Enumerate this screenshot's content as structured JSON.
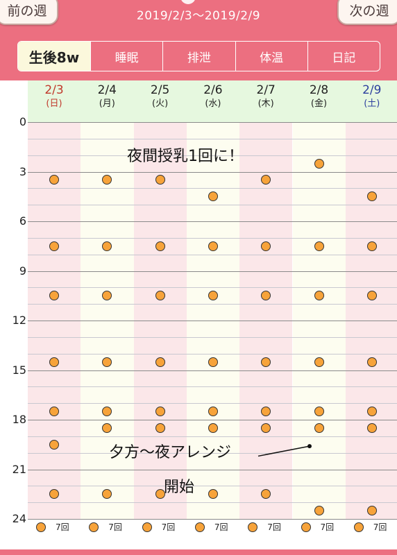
{
  "header": {
    "prev_week": "前の週",
    "next_week": "次の週",
    "date_range": "2019/2/3〜2019/2/9"
  },
  "tabs": [
    {
      "label": "生後8w",
      "sub": "",
      "active": true
    },
    {
      "label": "睡眠",
      "active": false
    },
    {
      "label": "排泄",
      "active": false
    },
    {
      "label": "体温",
      "active": false
    },
    {
      "label": "日記",
      "active": false
    }
  ],
  "days": [
    {
      "date": "2/3",
      "weekday": "(日)",
      "color": "#c0392b",
      "bg": "#fbe7e9"
    },
    {
      "date": "2/4",
      "weekday": "(月)",
      "color": "#222222",
      "bg": "#fdfdf0"
    },
    {
      "date": "2/5",
      "weekday": "(火)",
      "color": "#222222",
      "bg": "#fbe7e9"
    },
    {
      "date": "2/6",
      "weekday": "(水)",
      "color": "#222222",
      "bg": "#fdfdf0"
    },
    {
      "date": "2/7",
      "weekday": "(木)",
      "color": "#222222",
      "bg": "#fbe7e9"
    },
    {
      "date": "2/8",
      "weekday": "(金)",
      "color": "#222222",
      "bg": "#fdfdf0"
    },
    {
      "date": "2/9",
      "weekday": "(土)",
      "color": "#2c3f9e",
      "bg": "#fbe7e9"
    }
  ],
  "y_labels": [
    "0",
    "3",
    "6",
    "9",
    "12",
    "15",
    "18",
    "21",
    "24"
  ],
  "feedings": [
    [
      3.5,
      7.5,
      10.5,
      14.5,
      17.5,
      19.5,
      22.5
    ],
    [
      3.5,
      7.5,
      10.5,
      14.5,
      17.5,
      18.5,
      22.5
    ],
    [
      3.5,
      7.5,
      10.5,
      14.5,
      17.5,
      18.5,
      22.5
    ],
    [
      4.5,
      7.5,
      10.5,
      14.5,
      17.5,
      18.5,
      22.5
    ],
    [
      3.5,
      7.5,
      10.5,
      14.5,
      17.5,
      18.5,
      22.5
    ],
    [
      2.5,
      7.5,
      10.5,
      14.5,
      17.5,
      18.5,
      23.5
    ],
    [
      4.5,
      7.5,
      10.5,
      14.5,
      17.5,
      18.5,
      23.5
    ]
  ],
  "counts": [
    "7回",
    "7回",
    "7回",
    "7回",
    "7回",
    "7回",
    "7回"
  ],
  "notes": {
    "night": "夜間授乳1回に！",
    "arrange_line1": "夕方〜夜アレンジ",
    "arrange_line2": "開始"
  },
  "colors": {
    "header": "#ec6f80",
    "dot": "#f7a33a",
    "date_header_bg": "#e6f8df"
  }
}
